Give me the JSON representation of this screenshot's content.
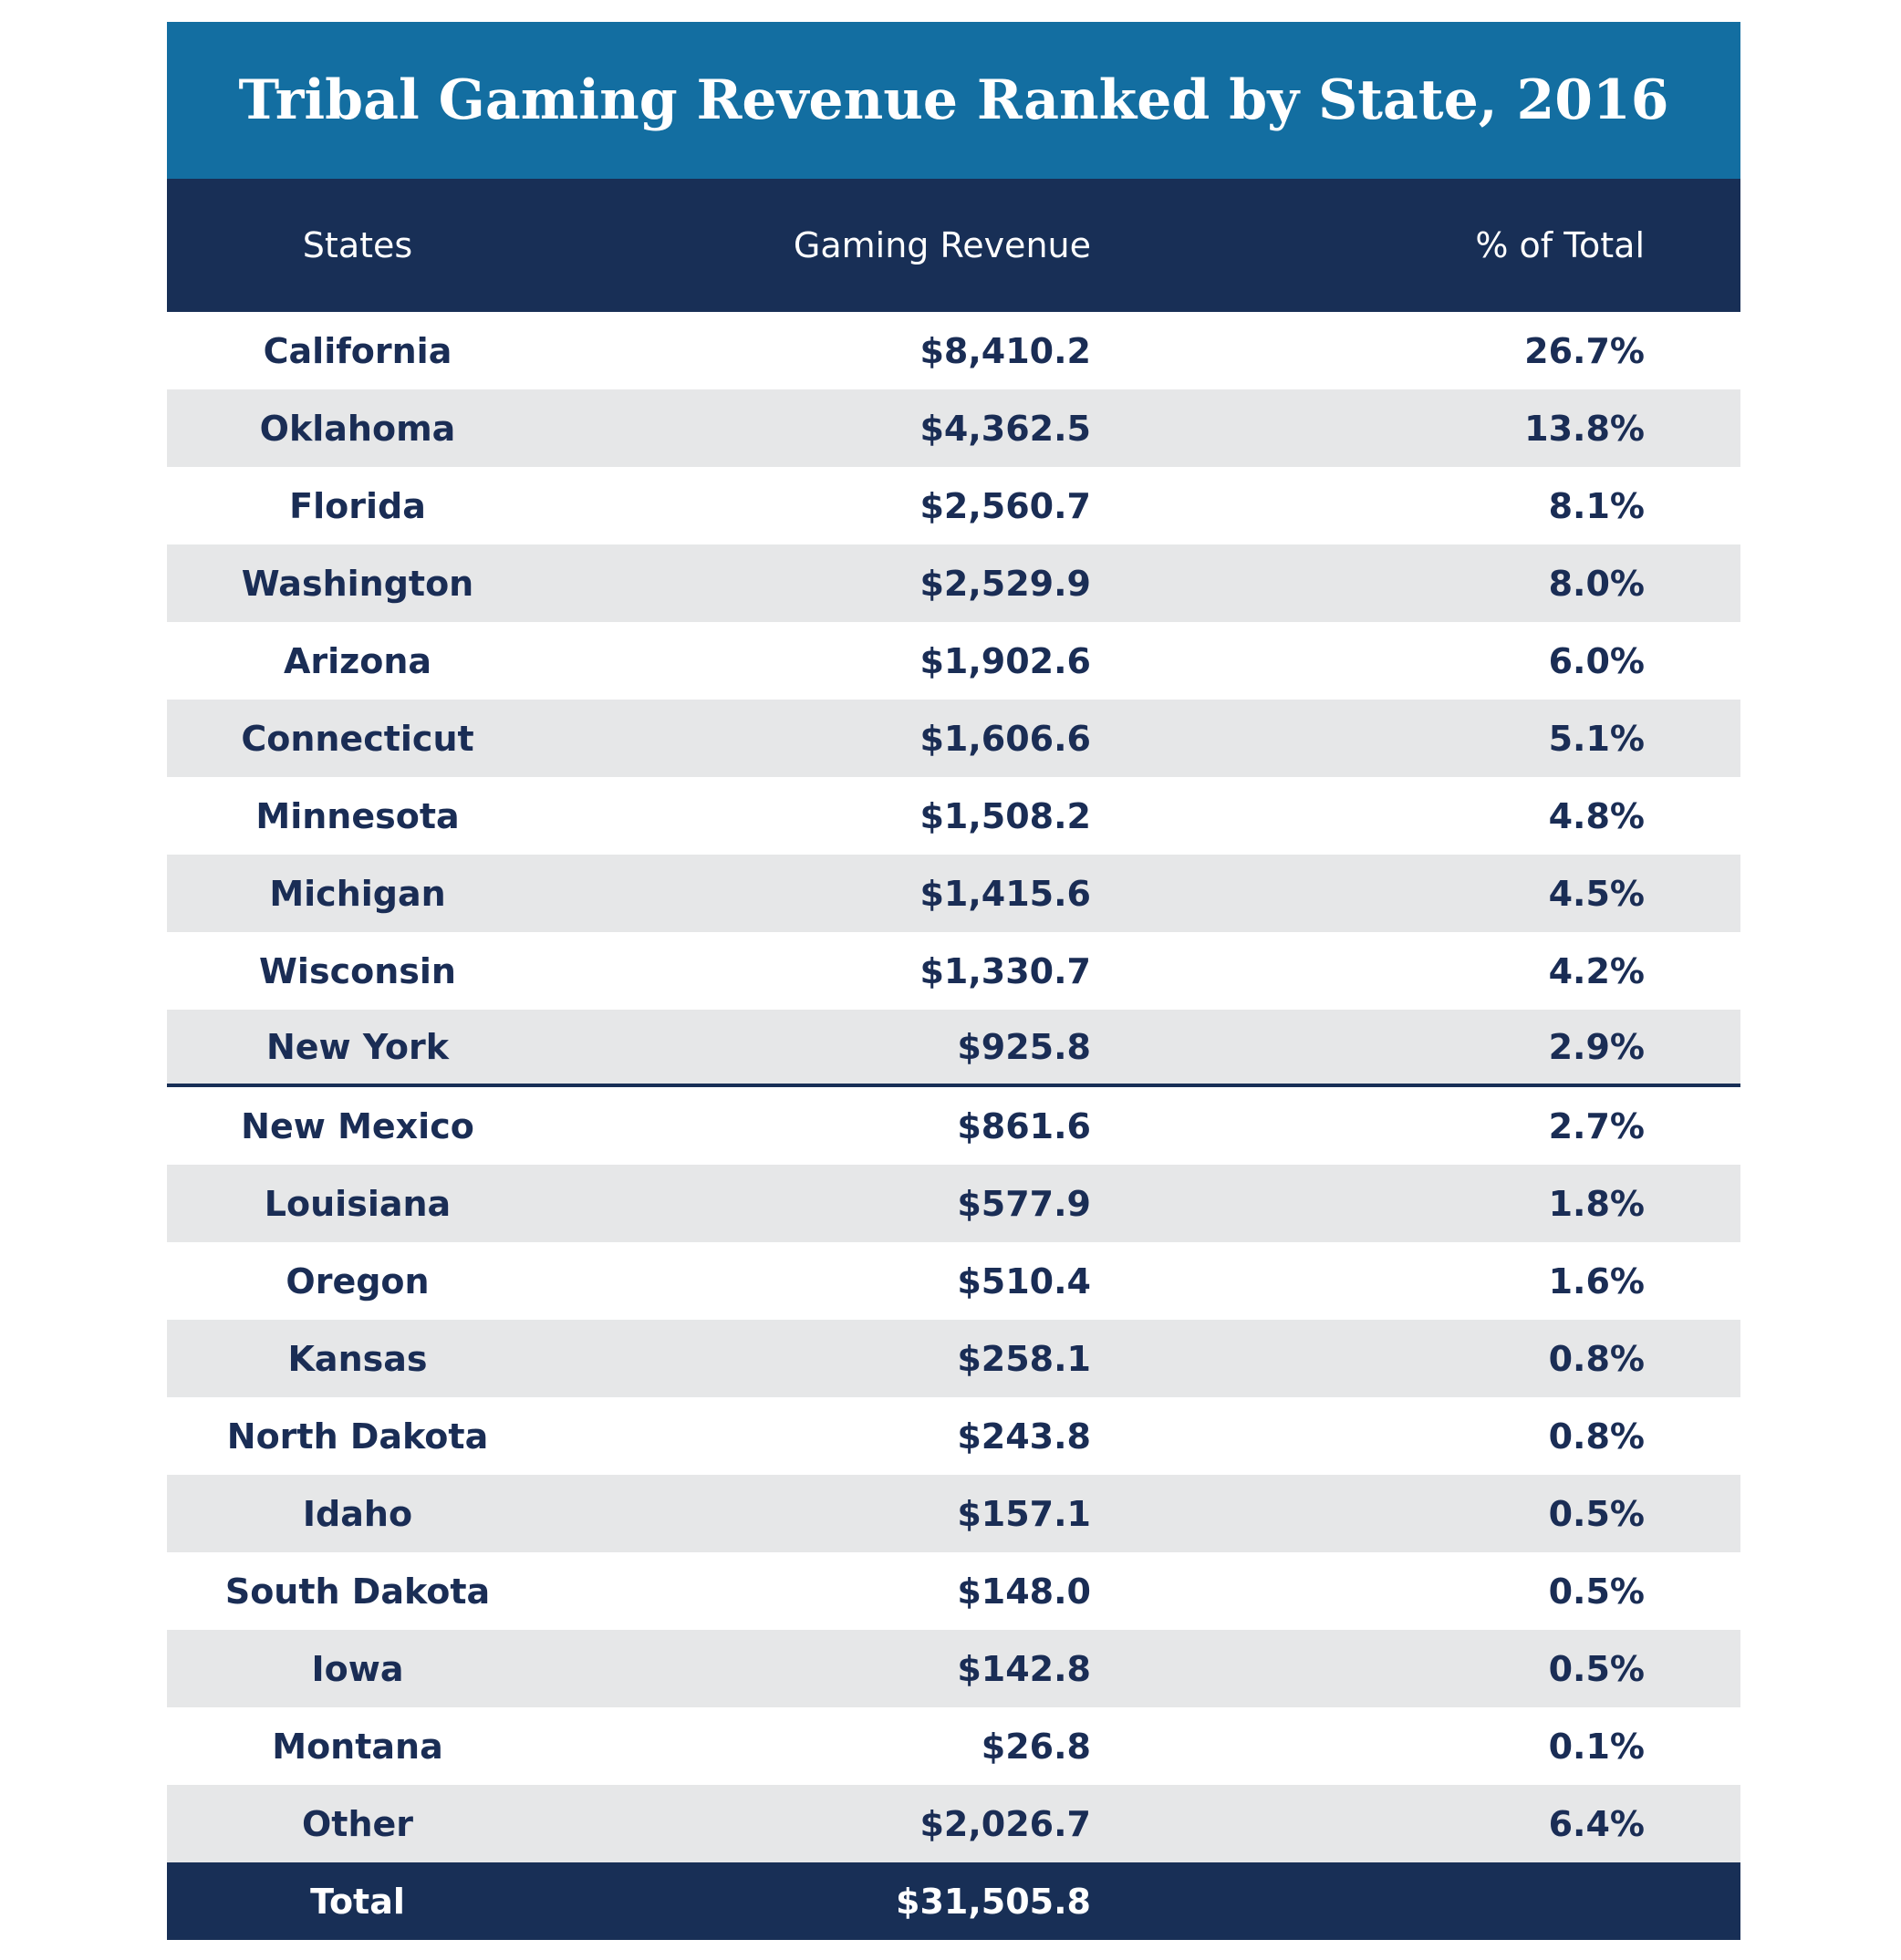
{
  "title": "Tribal Gaming Revenue Ranked by State, 2016",
  "columns": {
    "states": "States",
    "revenue": "Gaming Revenue",
    "percent": "% of Total"
  },
  "rows": [
    {
      "state": "California",
      "revenue": "$8,410.2",
      "percent": "26.7%"
    },
    {
      "state": "Oklahoma",
      "revenue": "$4,362.5",
      "percent": "13.8%"
    },
    {
      "state": "Florida",
      "revenue": "$2,560.7",
      "percent": "8.1%"
    },
    {
      "state": "Washington",
      "revenue": "$2,529.9",
      "percent": "8.0%"
    },
    {
      "state": "Arizona",
      "revenue": "$1,902.6",
      "percent": "6.0%"
    },
    {
      "state": "Connecticut",
      "revenue": "$1,606.6",
      "percent": "5.1%"
    },
    {
      "state": "Minnesota",
      "revenue": "$1,508.2",
      "percent": "4.8%"
    },
    {
      "state": "Michigan",
      "revenue": "$1,415.6",
      "percent": "4.5%"
    },
    {
      "state": "Wisconsin",
      "revenue": "$1,330.7",
      "percent": "4.2%"
    },
    {
      "state": "New York",
      "revenue": "$925.8",
      "percent": "2.9%"
    },
    {
      "state": "New Mexico",
      "revenue": "$861.6",
      "percent": "2.7%"
    },
    {
      "state": "Louisiana",
      "revenue": "$577.9",
      "percent": "1.8%"
    },
    {
      "state": "Oregon",
      "revenue": "$510.4",
      "percent": "1.6%"
    },
    {
      "state": "Kansas",
      "revenue": "$258.1",
      "percent": "0.8%"
    },
    {
      "state": "North Dakota",
      "revenue": "$243.8",
      "percent": "0.8%"
    },
    {
      "state": "Idaho",
      "revenue": "$157.1",
      "percent": "0.5%"
    },
    {
      "state": "South Dakota",
      "revenue": "$148.0",
      "percent": "0.5%"
    },
    {
      "state": "Iowa",
      "revenue": "$142.8",
      "percent": "0.5%"
    },
    {
      "state": "Montana",
      "revenue": "$26.8",
      "percent": "0.1%"
    },
    {
      "state": "Other",
      "revenue": "$2,026.7",
      "percent": "6.4%"
    }
  ],
  "total": {
    "label": "Total",
    "revenue": "$31,505.8",
    "percent": ""
  }
}
